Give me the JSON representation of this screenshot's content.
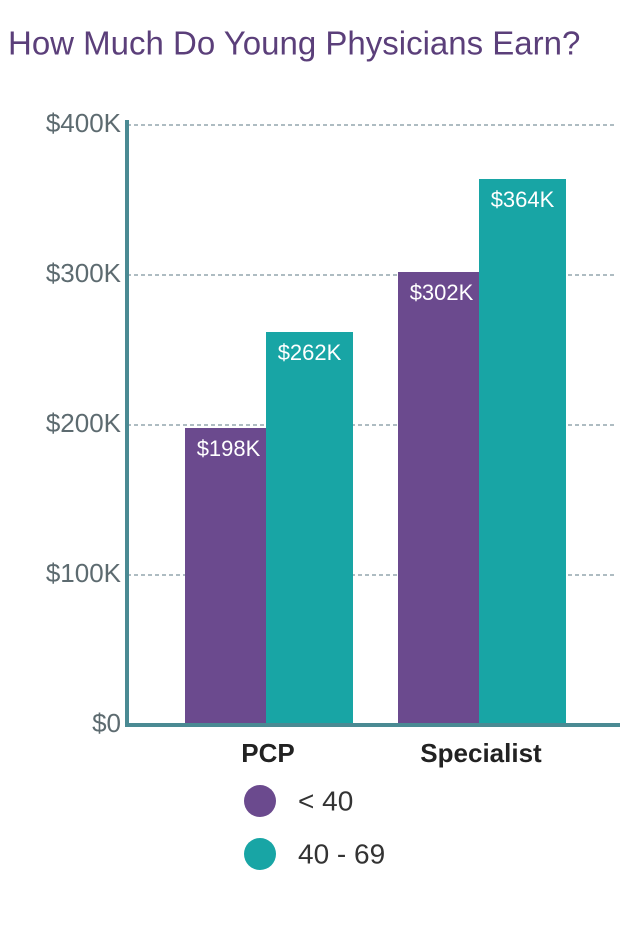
{
  "chart_data": {
    "type": "bar",
    "title": "How Much Do Young Physicians Earn?",
    "categories": [
      "PCP",
      "Specialist"
    ],
    "series": [
      {
        "name": "< 40",
        "color": "#6b4a8e",
        "values": [
          198000,
          302000
        ],
        "value_labels": [
          "$198K",
          "$302K"
        ]
      },
      {
        "name": "40 - 69",
        "color": "#18a5a5",
        "values": [
          262000,
          364000
        ],
        "value_labels": [
          "$262K",
          "$364K"
        ]
      }
    ],
    "ylim": [
      0,
      400000
    ],
    "yticks": [
      {
        "value": 0,
        "label": "$0"
      },
      {
        "value": 100000,
        "label": "$100K"
      },
      {
        "value": 200000,
        "label": "$200K"
      },
      {
        "value": 300000,
        "label": "$300K"
      },
      {
        "value": 400000,
        "label": "$400K"
      }
    ],
    "grid": true
  }
}
